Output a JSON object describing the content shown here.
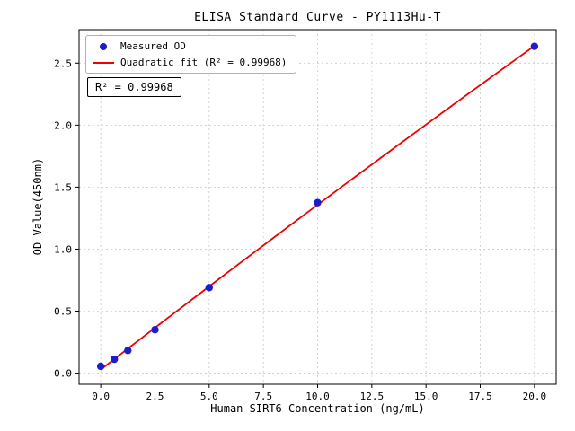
{
  "figure": {
    "background": "#ffffff"
  },
  "chart_data": {
    "type": "scatter",
    "title": "ELISA Standard Curve - PY1113Hu-T",
    "xlabel": "Human SIRT6 Concentration (ng/mL)",
    "ylabel": "OD Value(450nm)",
    "xlim": [
      -1,
      21
    ],
    "ylim": [
      -0.09,
      2.77
    ],
    "xticks": [
      0,
      2.5,
      5,
      7.5,
      10,
      12.5,
      15,
      17.5,
      20
    ],
    "xtick_labels": [
      "0.0",
      "2.5",
      "5.0",
      "7.5",
      "10.0",
      "12.5",
      "15.0",
      "17.5",
      "20.0"
    ],
    "yticks": [
      0,
      0.5,
      1,
      1.5,
      2,
      2.5
    ],
    "ytick_labels": [
      "0.0",
      "0.5",
      "1.0",
      "1.5",
      "2.0",
      "2.5"
    ],
    "grid": true,
    "annotation": "R² = 0.99968",
    "legend": {
      "position": "upper-left",
      "entries": [
        {
          "label": "Measured OD",
          "marker": "point",
          "color": "#1c1ccd"
        },
        {
          "label": "Quadratic fit (R² = 0.99968)",
          "marker": "line",
          "color": "#ee0000"
        }
      ]
    },
    "series": [
      {
        "name": "Measured OD",
        "type": "scatter",
        "color": "#1c1ccd",
        "x": [
          0,
          0.625,
          1.25,
          2.5,
          5,
          10,
          20
        ],
        "y": [
          0.055,
          0.112,
          0.183,
          0.35,
          0.69,
          1.375,
          2.635
        ]
      },
      {
        "name": "Quadratic fit",
        "type": "quadratic-fit",
        "color": "#ee0000",
        "r_squared": 0.99968,
        "x_range": [
          0,
          20
        ]
      }
    ]
  }
}
